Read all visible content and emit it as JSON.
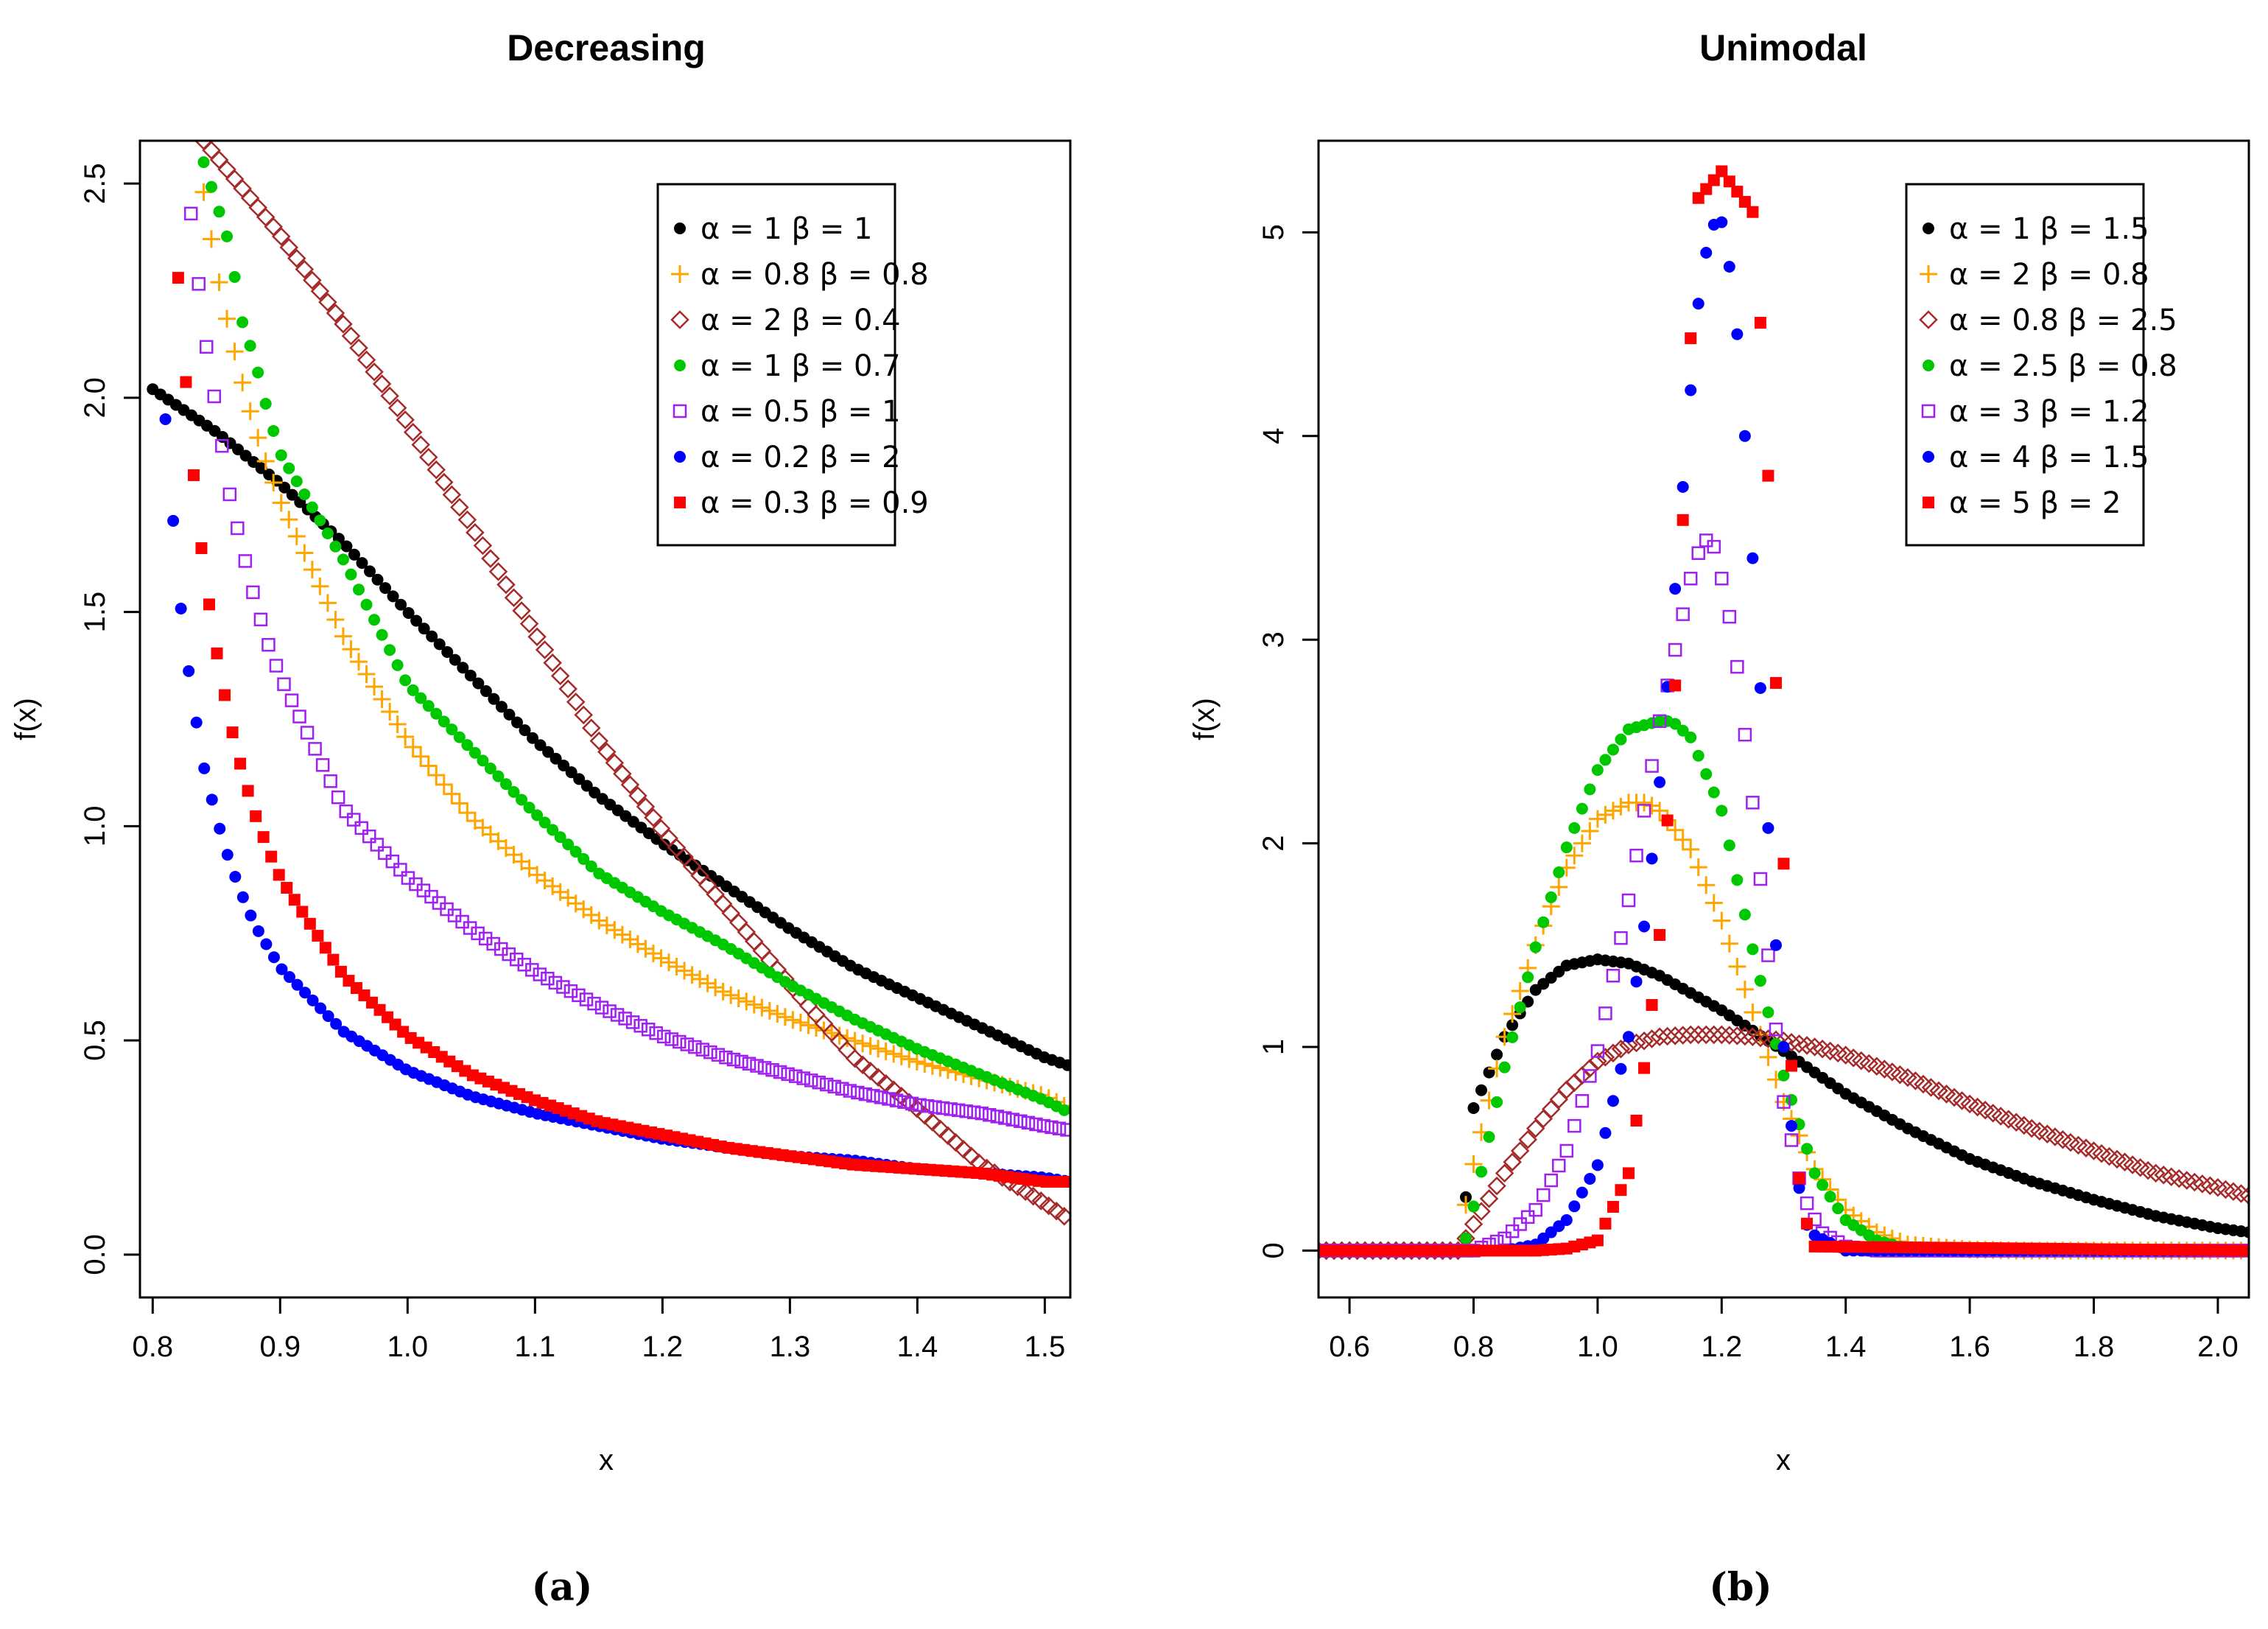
{
  "chart_data": [
    {
      "type": "scatter",
      "panel_label": "(a)",
      "title": "Decreasing",
      "xlabel": "x",
      "ylabel": "f(x)",
      "xlim": [
        0.79,
        1.52
      ],
      "ylim": [
        -0.1,
        2.6
      ],
      "xticks": [
        "0.8",
        "0.9",
        "1.0",
        "1.1",
        "1.2",
        "1.3",
        "1.4",
        "1.5"
      ],
      "yticks": [
        "0.0",
        "0.5",
        "1.0",
        "1.5",
        "2.0",
        "2.5"
      ],
      "legend_position": "top-right",
      "series": [
        {
          "name": "α = 1  β = 1",
          "color": "#000000",
          "marker": "circle",
          "x": [
            0.8,
            0.85,
            0.9,
            0.95,
            1.0,
            1.05,
            1.1,
            1.15,
            1.2,
            1.25,
            1.3,
            1.35,
            1.4,
            1.45,
            1.5,
            1.52
          ],
          "y": [
            2.02,
            1.92,
            1.8,
            1.66,
            1.5,
            1.35,
            1.2,
            1.07,
            0.96,
            0.86,
            0.76,
            0.67,
            0.6,
            0.53,
            0.46,
            0.44
          ]
        },
        {
          "name": "α = 0.8  β = 0.8",
          "color": "#ffa500",
          "marker": "plus",
          "x": [
            0.84,
            0.85,
            0.86,
            0.87,
            0.88,
            0.89,
            0.9,
            0.95,
            1.0,
            1.05,
            1.1,
            1.15,
            1.2,
            1.25,
            1.3,
            1.35,
            1.4,
            1.45,
            1.5,
            1.52
          ],
          "y": [
            2.48,
            2.3,
            2.16,
            2.04,
            1.93,
            1.84,
            1.76,
            1.44,
            1.2,
            1.02,
            0.89,
            0.78,
            0.69,
            0.61,
            0.55,
            0.5,
            0.45,
            0.41,
            0.37,
            0.34
          ]
        },
        {
          "name": "α = 2  β = 0.4",
          "color": "#a52a2a",
          "marker": "diamond",
          "x": [
            0.84,
            0.9,
            0.95,
            1.0,
            1.05,
            1.1,
            1.15,
            1.2,
            1.25,
            1.3,
            1.35,
            1.4,
            1.45,
            1.5,
            1.52
          ],
          "y": [
            2.6,
            2.38,
            2.17,
            1.94,
            1.7,
            1.45,
            1.2,
            0.99,
            0.81,
            0.63,
            0.46,
            0.34,
            0.21,
            0.12,
            0.08
          ]
        },
        {
          "name": "α = 1  β = 0.7",
          "color": "#00c800",
          "marker": "circle",
          "x": [
            0.84,
            0.86,
            0.87,
            0.88,
            0.89,
            0.9,
            0.95,
            1.0,
            1.05,
            1.1,
            1.15,
            1.2,
            1.25,
            1.3,
            1.35,
            1.4,
            1.45,
            1.5,
            1.52
          ],
          "y": [
            2.55,
            2.36,
            2.18,
            2.09,
            1.97,
            1.87,
            1.62,
            1.33,
            1.18,
            1.03,
            0.89,
            0.8,
            0.72,
            0.63,
            0.55,
            0.48,
            0.42,
            0.36,
            0.33
          ]
        },
        {
          "name": "α = 0.5  β = 1",
          "color": "#a020f0",
          "marker": "square",
          "x": [
            0.83,
            0.84,
            0.86,
            0.87,
            0.88,
            0.89,
            0.9,
            0.95,
            1.0,
            1.05,
            1.1,
            1.15,
            1.2,
            1.25,
            1.3,
            1.35,
            1.4,
            1.45,
            1.5,
            1.52
          ],
          "y": [
            2.43,
            2.16,
            1.78,
            1.65,
            1.53,
            1.43,
            1.35,
            1.04,
            0.88,
            0.76,
            0.66,
            0.58,
            0.51,
            0.46,
            0.42,
            0.38,
            0.35,
            0.33,
            0.3,
            0.29
          ]
        },
        {
          "name": "α = 0.2  β = 2",
          "color": "#0000ff",
          "marker": "circle",
          "x": [
            0.81,
            0.82,
            0.83,
            0.84,
            0.85,
            0.86,
            0.87,
            0.88,
            0.9,
            0.95,
            1.0,
            1.05,
            1.1,
            1.15,
            1.2,
            1.25,
            1.3,
            1.35,
            1.4,
            1.45,
            1.5,
            1.52
          ],
          "y": [
            1.95,
            1.56,
            1.32,
            1.14,
            1.02,
            0.92,
            0.84,
            0.77,
            0.67,
            0.52,
            0.43,
            0.37,
            0.33,
            0.3,
            0.27,
            0.25,
            0.23,
            0.22,
            0.2,
            0.19,
            0.18,
            0.17
          ]
        },
        {
          "name": "α = 0.3  β = 0.9",
          "color": "#ff0000",
          "marker": "square",
          "x": [
            0.82,
            0.83,
            0.84,
            0.85,
            0.86,
            0.87,
            0.88,
            0.89,
            0.9,
            0.95,
            1.0,
            1.05,
            1.1,
            1.15,
            1.2,
            1.25,
            1.3,
            1.35,
            1.4,
            1.45,
            1.5,
            1.52
          ],
          "y": [
            2.28,
            1.88,
            1.6,
            1.41,
            1.25,
            1.13,
            1.03,
            0.95,
            0.88,
            0.65,
            0.51,
            0.42,
            0.36,
            0.31,
            0.28,
            0.25,
            0.23,
            0.21,
            0.2,
            0.19,
            0.17,
            0.17
          ]
        }
      ]
    },
    {
      "type": "scatter",
      "panel_label": "(b)",
      "title": "Unimodal",
      "xlabel": "x",
      "ylabel": "f(x)",
      "xlim": [
        0.55,
        2.05
      ],
      "ylim": [
        -0.23,
        5.45
      ],
      "xticks": [
        "0.6",
        "0.8",
        "1.0",
        "1.2",
        "1.4",
        "1.6",
        "1.8",
        "2.0"
      ],
      "yticks": [
        "0",
        "1",
        "2",
        "3",
        "4",
        "5"
      ],
      "legend_position": "top-right",
      "series": [
        {
          "name": "α = 1  β = 1.5",
          "color": "#000000",
          "marker": "circle",
          "x": [
            0.55,
            0.78,
            0.8,
            0.85,
            0.9,
            0.95,
            1.0,
            1.05,
            1.1,
            1.2,
            1.3,
            1.4,
            1.5,
            1.6,
            1.7,
            1.8,
            1.9,
            2.0,
            2.05
          ],
          "y": [
            0,
            0,
            0.7,
            1.05,
            1.28,
            1.4,
            1.43,
            1.41,
            1.35,
            1.18,
            0.98,
            0.77,
            0.6,
            0.45,
            0.34,
            0.25,
            0.17,
            0.11,
            0.09
          ]
        },
        {
          "name": "α = 2  β = 0.8",
          "color": "#ffa500",
          "marker": "plus",
          "x": [
            0.55,
            0.78,
            0.79,
            0.85,
            0.9,
            0.95,
            1.0,
            1.05,
            1.08,
            1.1,
            1.15,
            1.2,
            1.25,
            1.3,
            1.35,
            1.4,
            1.45,
            1.5,
            1.6,
            1.7,
            2.05
          ],
          "y": [
            0,
            0,
            0.3,
            1.05,
            1.5,
            1.88,
            2.12,
            2.2,
            2.2,
            2.16,
            1.97,
            1.62,
            1.17,
            0.73,
            0.4,
            0.2,
            0.09,
            0.03,
            0.005,
            0,
            0
          ]
        },
        {
          "name": "α = 0.8  β = 2.5",
          "color": "#a52a2a",
          "marker": "diamond",
          "x": [
            0.55,
            0.78,
            0.79,
            0.85,
            0.9,
            0.95,
            1.0,
            1.05,
            1.1,
            1.15,
            1.2,
            1.25,
            1.3,
            1.35,
            1.4,
            1.5,
            1.6,
            1.7,
            1.8,
            1.9,
            2.0,
            2.05
          ],
          "y": [
            0,
            0,
            0.08,
            0.38,
            0.6,
            0.79,
            0.93,
            1.01,
            1.05,
            1.06,
            1.06,
            1.05,
            1.03,
            1.0,
            0.96,
            0.85,
            0.72,
            0.6,
            0.49,
            0.38,
            0.31,
            0.27
          ]
        },
        {
          "name": "α = 2.5  β = 0.8",
          "color": "#00c800",
          "marker": "circle",
          "x": [
            0.55,
            0.78,
            0.79,
            0.85,
            0.9,
            0.95,
            1.0,
            1.05,
            1.1,
            1.12,
            1.15,
            1.2,
            1.25,
            1.3,
            1.35,
            1.4,
            1.45,
            1.5,
            1.6,
            2.05
          ],
          "y": [
            0,
            0,
            0.08,
            0.9,
            1.49,
            1.98,
            2.36,
            2.56,
            2.6,
            2.6,
            2.52,
            2.16,
            1.48,
            0.86,
            0.38,
            0.15,
            0.05,
            0.01,
            0,
            0
          ]
        },
        {
          "name": "α = 3  β = 1.2",
          "color": "#a020f0",
          "marker": "square",
          "x": [
            0.55,
            0.8,
            0.85,
            0.9,
            0.95,
            1.0,
            1.05,
            1.1,
            1.15,
            1.17,
            1.19,
            1.22,
            1.25,
            1.28,
            1.3,
            1.33,
            1.36,
            1.4,
            1.45,
            2.05
          ],
          "y": [
            0,
            0,
            0.06,
            0.2,
            0.49,
            0.98,
            1.72,
            2.6,
            3.3,
            3.5,
            3.45,
            3.0,
            2.2,
            1.3,
            0.73,
            0.28,
            0.09,
            0.02,
            0,
            0
          ]
        },
        {
          "name": "α = 4  β = 1.5",
          "color": "#0000ff",
          "marker": "circle",
          "x": [
            0.55,
            0.85,
            0.9,
            0.95,
            1.0,
            1.05,
            1.08,
            1.1,
            1.12,
            1.14,
            1.16,
            1.18,
            1.19,
            1.2,
            1.22,
            1.24,
            1.26,
            1.28,
            1.3,
            1.32,
            1.34,
            1.4,
            2.05
          ],
          "y": [
            0,
            0,
            0.03,
            0.15,
            0.42,
            1.05,
            1.7,
            2.3,
            3.05,
            3.85,
            4.6,
            5.0,
            5.05,
            5.05,
            4.7,
            3.9,
            2.9,
            1.8,
            1.0,
            0.38,
            0.09,
            0,
            0
          ]
        },
        {
          "name": "α = 5  β = 2",
          "color": "#ff0000",
          "marker": "square",
          "x": [
            0.55,
            0.9,
            0.95,
            1.0,
            1.05,
            1.08,
            1.1,
            1.12,
            1.14,
            1.15,
            1.16,
            1.2,
            1.25,
            1.27,
            1.28,
            1.29,
            1.3,
            1.31,
            1.32,
            1.33,
            1.35,
            2.05
          ],
          "y": [
            0,
            0,
            0.01,
            0.05,
            0.38,
            1.0,
            1.55,
            2.45,
            3.75,
            4.48,
            5.16,
            5.3,
            5.1,
            4.23,
            3.38,
            2.59,
            1.9,
            1.04,
            0.51,
            0.2,
            0.02,
            0
          ]
        }
      ]
    }
  ]
}
